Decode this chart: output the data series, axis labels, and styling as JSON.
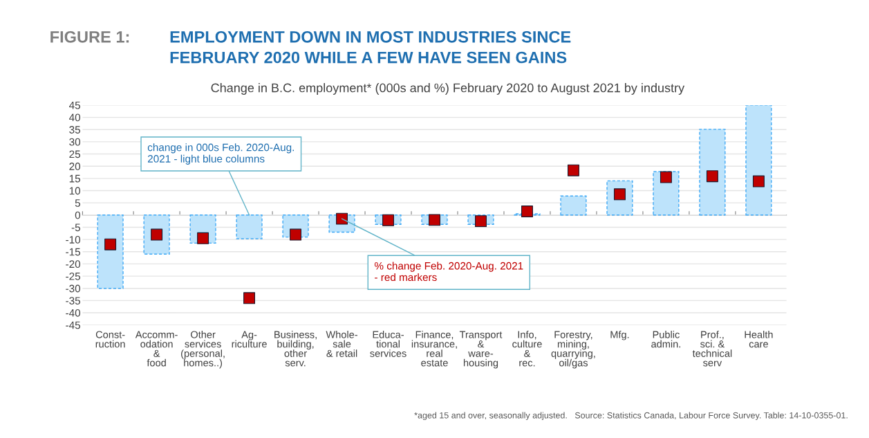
{
  "chart_data": {
    "type": "bar",
    "title": "EMPLOYMENT DOWN IN MOST INDUSTRIES SINCE\nFEBRUARY 2020 WHILE A FEW HAVE SEEN GAINS",
    "subtitle": "Change in B.C. employment* (000s and %) February 2020 to August 2021 by industry",
    "categories": [
      "Const-\nruction",
      "Accomm-\nodation\n&\nfood",
      "Other\nservices\n(personal,\nhomes..)",
      "Ag-\nriculture",
      "Business,\nbuilding,\nother\nserv.",
      "Whole-\nsale\n& retail",
      "Educa-\ntional\nservices",
      "Finance,\ninsurance,\nreal\nestate",
      "Transport\n&\nware-\nhousing",
      "Info,\nculture\n&\nrec.",
      "Forestry,\nmining,\nquarrying,\noil/gas",
      "Mfg.",
      "Public\nadmin.",
      "Prof.,\nsci. &\ntechnical\nserv",
      "Health\ncare"
    ],
    "series": [
      {
        "color": "#bde3fb",
        "values": [
          -30,
          -16,
          -11.5,
          -9.7,
          -9,
          -7,
          -3.8,
          -3.8,
          -3.8,
          0.5,
          7.8,
          14,
          17.8,
          35.1,
          45
        ]
      },
      {
        "type": "scatter",
        "color": "#c00000",
        "x": [
          "Const-\nruction",
          "Accomm-\nodation\n&\nfood",
          "Other\nservices\n(personal,\nhomes..)",
          "Ag-\nriculture",
          "Business,\nbuilding,\nother\nserv.",
          "Whole-\nsale\n& retail",
          "Educa-\ntional\nservices",
          "Finance,\ninsurance,\nreal\nestate",
          "Transport\n&\nware-\nhousing",
          "Info,\nculture\n&\nrec.",
          "Forestry,\nmining,\nquarrying,\noil/gas",
          "Mfg.",
          "Public\nadmin.",
          "Prof.,\nsci. &\ntechnical\nserv",
          "Health\ncare"
        ],
        "values": [
          -12,
          -8,
          -9.5,
          -34,
          -8,
          -1.5,
          -2.1,
          -2,
          -2.5,
          1.5,
          18.3,
          8.5,
          15.5,
          15.9,
          13.8
        ]
      }
    ],
    "ylim": [
      -45,
      45
    ],
    "yticks": [
      -45,
      -40,
      -35,
      -30,
      -25,
      -20,
      -15,
      -10,
      -5,
      0,
      5,
      10,
      15,
      20,
      25,
      30,
      35,
      40,
      45
    ],
    "grid": "y",
    "marker": "square",
    "annotations": [
      "FIGURE 1:",
      {
        "text": "change in 000s Feb. 2020-Aug.\n2021 - light blue columns",
        "x": "Ag-\nriculture",
        "y": 0
      },
      {
        "text": "% change Feb. 2020-Aug. 2021\n- red markers",
        "x": "Whole-\nsale\n& retail",
        "y": -1.5
      },
      "*aged 15 and over, seasonally adjusted.   Source: Statistics Canada, Labour Force Survey. Table: 14-10-0355-01."
    ]
  }
}
